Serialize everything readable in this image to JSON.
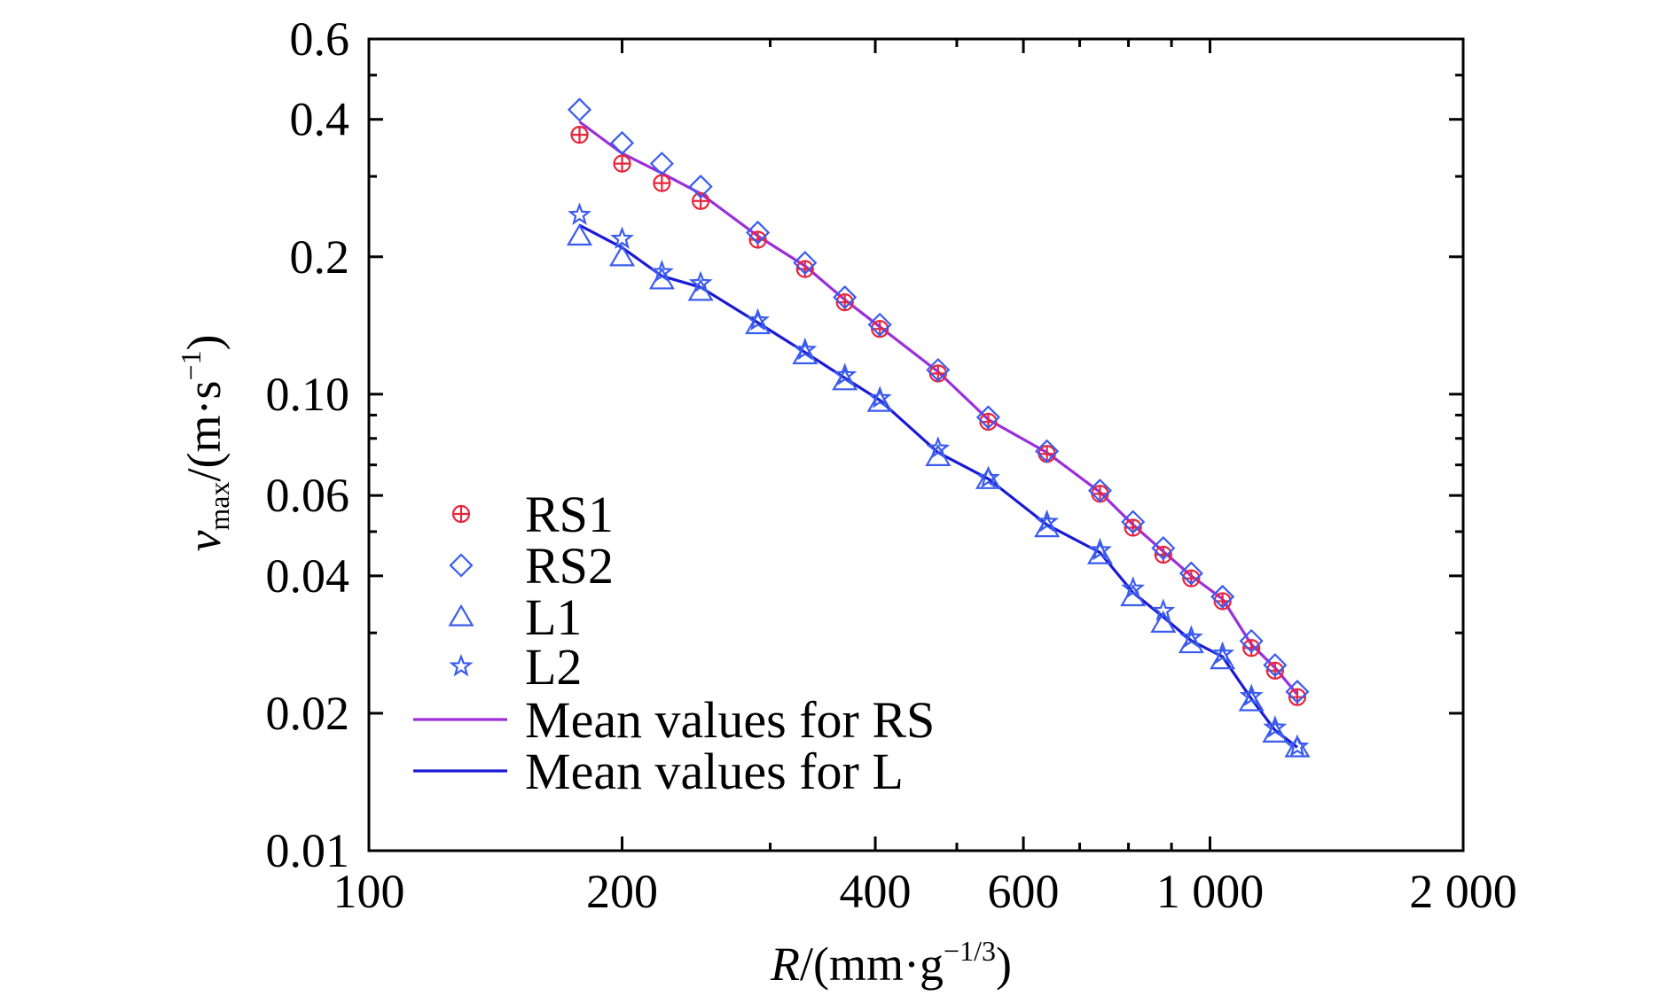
{
  "chart_data": {
    "type": "scatter",
    "x_scale": "log",
    "y_scale": "log",
    "xlim": [
      100,
      2000
    ],
    "ylim": [
      0.01,
      0.6
    ],
    "xlabel": {
      "var": "R",
      "unit": "/(mm·g",
      "exp": "−1/3",
      "close": ")"
    },
    "ylabel": {
      "var": "v",
      "sub": "max",
      "unit": "/(m·s",
      "exp": "−1",
      "close": ")"
    },
    "x_ticks": [
      {
        "value": 100,
        "label": "100"
      },
      {
        "value": 200,
        "label": "200"
      },
      {
        "value": 400,
        "label": "400"
      },
      {
        "value": 600,
        "label": "600"
      },
      {
        "value": 1000,
        "label": "1 000"
      },
      {
        "value": 2000,
        "label": "2 000"
      }
    ],
    "y_ticks": [
      {
        "value": 0.01,
        "label": "0.01"
      },
      {
        "value": 0.02,
        "label": "0.02"
      },
      {
        "value": 0.04,
        "label": "0.04"
      },
      {
        "value": 0.06,
        "label": "0.06"
      },
      {
        "value": 0.1,
        "label": "0.10"
      },
      {
        "value": 0.2,
        "label": "0.2"
      },
      {
        "value": 0.4,
        "label": "0.4"
      },
      {
        "value": 0.6,
        "label": "0.6"
      }
    ],
    "grid": false,
    "legend_position": "bottom-left",
    "series": [
      {
        "name": "RS1",
        "kind": "marker",
        "marker": "circle-plus",
        "color": "#e8253b",
        "x": [
          178,
          200,
          223,
          248,
          290,
          330,
          368,
          405,
          475,
          545,
          640,
          740,
          810,
          880,
          950,
          1035,
          1120,
          1195,
          1270
        ],
        "y": [
          0.37,
          0.32,
          0.29,
          0.265,
          0.218,
          0.188,
          0.159,
          0.139,
          0.111,
          0.087,
          0.074,
          0.0605,
          0.051,
          0.0445,
          0.0395,
          0.0352,
          0.0278,
          0.0248,
          0.0217
        ]
      },
      {
        "name": "RS2",
        "kind": "marker",
        "marker": "diamond",
        "color": "#3a5bf0",
        "x": [
          178,
          200,
          223,
          248,
          290,
          330,
          368,
          405,
          475,
          545,
          640,
          740,
          810,
          880,
          950,
          1035,
          1120,
          1195,
          1270
        ],
        "y": [
          0.42,
          0.355,
          0.32,
          0.285,
          0.226,
          0.194,
          0.163,
          0.142,
          0.113,
          0.089,
          0.075,
          0.0615,
          0.0525,
          0.046,
          0.0405,
          0.036,
          0.0288,
          0.0255,
          0.0223
        ]
      },
      {
        "name": "L1",
        "kind": "marker",
        "marker": "triangle",
        "color": "#3a5bf0",
        "x": [
          178,
          200,
          223,
          248,
          290,
          330,
          368,
          405,
          475,
          545,
          640,
          740,
          810,
          880,
          950,
          1035,
          1120,
          1195,
          1270
        ],
        "y": [
          0.222,
          0.2,
          0.178,
          0.168,
          0.142,
          0.122,
          0.107,
          0.096,
          0.073,
          0.065,
          0.051,
          0.0445,
          0.036,
          0.0315,
          0.0284,
          0.0262,
          0.0212,
          0.0181,
          0.0168
        ]
      },
      {
        "name": "L2",
        "kind": "marker",
        "marker": "star",
        "color": "#3a5bf0",
        "x": [
          178,
          200,
          223,
          248,
          290,
          330,
          368,
          405,
          475,
          545,
          640,
          740,
          810,
          880,
          950,
          1035,
          1120,
          1195,
          1270
        ],
        "y": [
          0.247,
          0.219,
          0.185,
          0.175,
          0.145,
          0.125,
          0.11,
          0.098,
          0.076,
          0.0655,
          0.0525,
          0.0455,
          0.0375,
          0.0335,
          0.0293,
          0.027,
          0.0218,
          0.0186,
          0.0169
        ]
      },
      {
        "name": "Mean values for RS",
        "kind": "line",
        "color": "#9b2fd9",
        "x": [
          178,
          200,
          223,
          248,
          290,
          330,
          368,
          405,
          475,
          545,
          640,
          740,
          810,
          880,
          950,
          1035,
          1120,
          1195,
          1270
        ],
        "y": [
          0.395,
          0.337,
          0.305,
          0.275,
          0.222,
          0.191,
          0.161,
          0.1405,
          0.112,
          0.088,
          0.0745,
          0.061,
          0.05175,
          0.04525,
          0.04,
          0.0356,
          0.0283,
          0.02515,
          0.022
        ]
      },
      {
        "name": "Mean values for L",
        "kind": "line",
        "color": "#1a1ad6",
        "x": [
          178,
          200,
          223,
          248,
          290,
          330,
          368,
          405,
          475,
          545,
          640,
          740,
          810,
          880,
          950,
          1035,
          1120,
          1195,
          1270
        ],
        "y": [
          0.2345,
          0.2095,
          0.1815,
          0.1715,
          0.1435,
          0.1235,
          0.1085,
          0.097,
          0.0745,
          0.06525,
          0.05175,
          0.045,
          0.03675,
          0.0325,
          0.02885,
          0.0266,
          0.0215,
          0.01835,
          0.01685
        ]
      }
    ]
  }
}
